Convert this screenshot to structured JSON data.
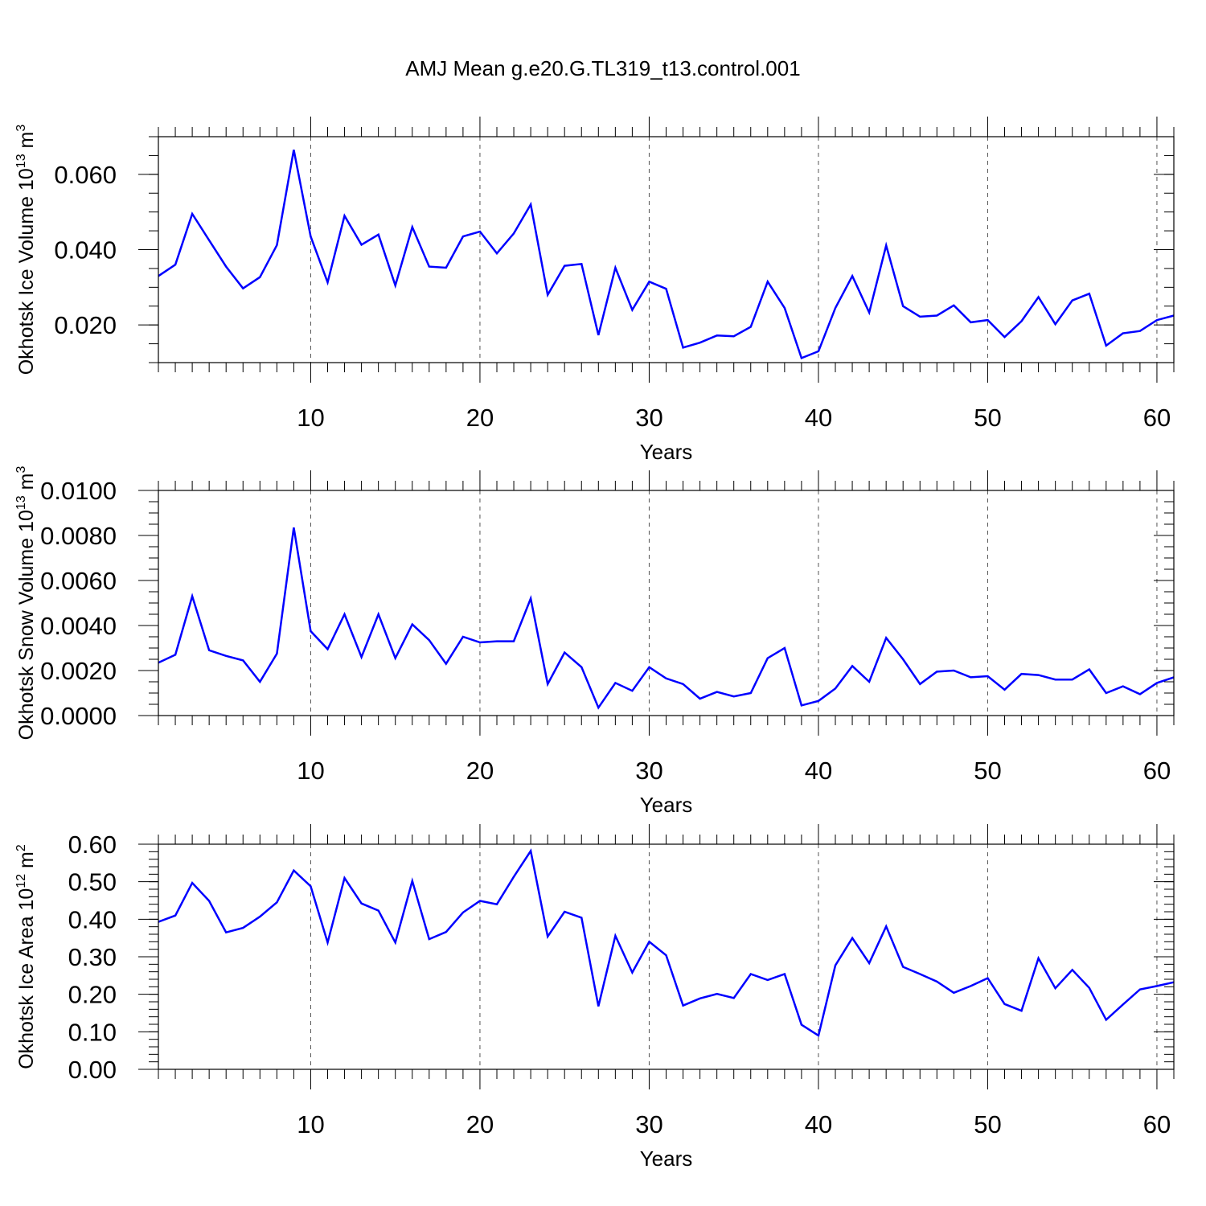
{
  "title": "AMJ Mean g.e20.G.TL319_t13.control.001",
  "line_color": "#0000ff",
  "chart_data": [
    {
      "type": "line",
      "name": "ice-volume",
      "ylabel": "Okhotsk Ice Volume 10",
      "ylabel_exp": "13",
      "ylabel_unit": " m",
      "ylabel_unit_exp": "3",
      "xlabel": "Years",
      "xlim": [
        1,
        61
      ],
      "ylim": [
        0.01,
        0.07
      ],
      "x_ticks": [
        10,
        20,
        30,
        40,
        50,
        60
      ],
      "x_tick_labels": [
        "10",
        "20",
        "30",
        "40",
        "50",
        "60"
      ],
      "y_ticks": [
        0.02,
        0.04,
        0.06
      ],
      "y_tick_labels": [
        "0.020",
        "0.040",
        "0.060"
      ],
      "y_minor_step": 0.005,
      "grid": "dashed vertical at major x ticks",
      "x": [
        1,
        2,
        3,
        4,
        5,
        6,
        7,
        8,
        9,
        10,
        11,
        12,
        13,
        14,
        15,
        16,
        17,
        18,
        19,
        20,
        21,
        22,
        23,
        24,
        25,
        26,
        27,
        28,
        29,
        30,
        31,
        32,
        33,
        34,
        35,
        36,
        37,
        38,
        39,
        40,
        41,
        42,
        43,
        44,
        45,
        46,
        47,
        48,
        49,
        50,
        51,
        52,
        53,
        54,
        55,
        56,
        57,
        58,
        59,
        60,
        61
      ],
      "values": [
        0.033,
        0.036,
        0.0495,
        0.0425,
        0.0355,
        0.0297,
        0.0327,
        0.0412,
        0.0665,
        0.0435,
        0.0313,
        0.049,
        0.0413,
        0.044,
        0.0305,
        0.046,
        0.0355,
        0.0352,
        0.0435,
        0.0448,
        0.039,
        0.0443,
        0.052,
        0.028,
        0.0357,
        0.0362,
        0.0173,
        0.0352,
        0.024,
        0.0315,
        0.0296,
        0.014,
        0.0153,
        0.0172,
        0.017,
        0.0195,
        0.0315,
        0.0245,
        0.0112,
        0.013,
        0.0245,
        0.033,
        0.0233,
        0.0411,
        0.025,
        0.0222,
        0.0225,
        0.0252,
        0.0207,
        0.0213,
        0.0168,
        0.021,
        0.0274,
        0.0202,
        0.0265,
        0.0283,
        0.0145,
        0.0178,
        0.0184,
        0.0213,
        0.0225
      ]
    },
    {
      "type": "line",
      "name": "snow-volume",
      "ylabel": "Okhotsk Snow Volume 10",
      "ylabel_exp": "13",
      "ylabel_unit": " m",
      "ylabel_unit_exp": "3",
      "xlabel": "Years",
      "xlim": [
        1,
        61
      ],
      "ylim": [
        0.0,
        0.01
      ],
      "x_ticks": [
        10,
        20,
        30,
        40,
        50,
        60
      ],
      "x_tick_labels": [
        "10",
        "20",
        "30",
        "40",
        "50",
        "60"
      ],
      "y_ticks": [
        0.0,
        0.002,
        0.004,
        0.006,
        0.008,
        0.01
      ],
      "y_tick_labels": [
        "0.0000",
        "0.0020",
        "0.0040",
        "0.0060",
        "0.0080",
        "0.0100"
      ],
      "y_minor_step": 0.0005,
      "grid": "dashed vertical at major x ticks",
      "x": [
        1,
        2,
        3,
        4,
        5,
        6,
        7,
        8,
        9,
        10,
        11,
        12,
        13,
        14,
        15,
        16,
        17,
        18,
        19,
        20,
        21,
        22,
        23,
        24,
        25,
        26,
        27,
        28,
        29,
        30,
        31,
        32,
        33,
        34,
        35,
        36,
        37,
        38,
        39,
        40,
        41,
        42,
        43,
        44,
        45,
        46,
        47,
        48,
        49,
        50,
        51,
        52,
        53,
        54,
        55,
        56,
        57,
        58,
        59,
        60,
        61
      ],
      "values": [
        0.00235,
        0.0027,
        0.0053,
        0.0029,
        0.00265,
        0.00245,
        0.0015,
        0.00275,
        0.00835,
        0.00375,
        0.00295,
        0.0045,
        0.0026,
        0.0045,
        0.00255,
        0.00405,
        0.00335,
        0.0023,
        0.0035,
        0.00325,
        0.0033,
        0.0033,
        0.0052,
        0.0014,
        0.0028,
        0.00215,
        0.00035,
        0.00145,
        0.0011,
        0.00215,
        0.00165,
        0.0014,
        0.00075,
        0.00105,
        0.00085,
        0.001,
        0.00255,
        0.003,
        0.00045,
        0.00065,
        0.0012,
        0.0022,
        0.0015,
        0.00345,
        0.0025,
        0.0014,
        0.00195,
        0.002,
        0.0017,
        0.00175,
        0.00115,
        0.00185,
        0.0018,
        0.0016,
        0.0016,
        0.00205,
        0.001,
        0.0013,
        0.00095,
        0.00145,
        0.0017
      ]
    },
    {
      "type": "line",
      "name": "ice-area",
      "ylabel": "Okhotsk Ice Area 10",
      "ylabel_exp": "12",
      "ylabel_unit": " m",
      "ylabel_unit_exp": "2",
      "xlabel": "Years",
      "xlim": [
        1,
        61
      ],
      "ylim": [
        0.0,
        0.6
      ],
      "x_ticks": [
        10,
        20,
        30,
        40,
        50,
        60
      ],
      "x_tick_labels": [
        "10",
        "20",
        "30",
        "40",
        "50",
        "60"
      ],
      "y_ticks": [
        0.0,
        0.1,
        0.2,
        0.3,
        0.4,
        0.5,
        0.6
      ],
      "y_tick_labels": [
        "0.00",
        "0.10",
        "0.20",
        "0.30",
        "0.40",
        "0.50",
        "0.60"
      ],
      "y_minor_step": 0.02,
      "grid": "dashed vertical at major x ticks",
      "x": [
        1,
        2,
        3,
        4,
        5,
        6,
        7,
        8,
        9,
        10,
        11,
        12,
        13,
        14,
        15,
        16,
        17,
        18,
        19,
        20,
        21,
        22,
        23,
        24,
        25,
        26,
        27,
        28,
        29,
        30,
        31,
        32,
        33,
        34,
        35,
        36,
        37,
        38,
        39,
        40,
        41,
        42,
        43,
        44,
        45,
        46,
        47,
        48,
        49,
        50,
        51,
        52,
        53,
        54,
        55,
        56,
        57,
        58,
        59,
        60,
        61
      ],
      "values": [
        0.393,
        0.41,
        0.497,
        0.449,
        0.365,
        0.377,
        0.407,
        0.445,
        0.53,
        0.488,
        0.338,
        0.51,
        0.442,
        0.423,
        0.338,
        0.502,
        0.347,
        0.366,
        0.418,
        0.449,
        0.44,
        0.513,
        0.582,
        0.354,
        0.42,
        0.404,
        0.168,
        0.356,
        0.258,
        0.34,
        0.304,
        0.17,
        0.189,
        0.201,
        0.19,
        0.254,
        0.238,
        0.254,
        0.119,
        0.09,
        0.277,
        0.35,
        0.283,
        0.381,
        0.273,
        0.254,
        0.234,
        0.204,
        0.222,
        0.243,
        0.174,
        0.156,
        0.296,
        0.216,
        0.265,
        0.217,
        0.132,
        0.173,
        0.213,
        0.222,
        0.232
      ]
    }
  ]
}
